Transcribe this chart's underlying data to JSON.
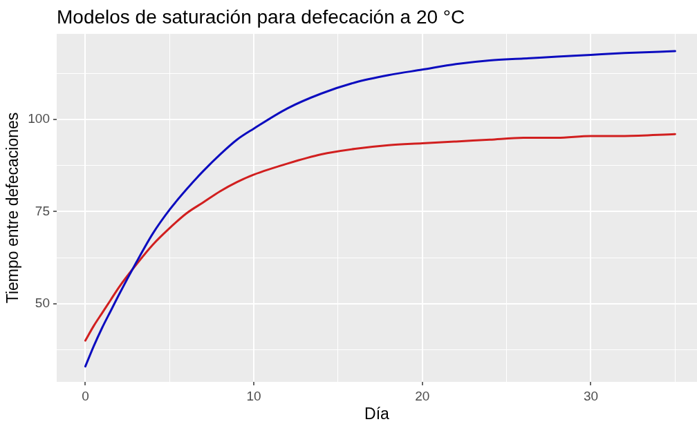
{
  "chart_data": {
    "type": "line",
    "title": "Modelos de saturación para defecación a 20 °C",
    "xlabel": "Día",
    "ylabel": "Tiempo entre defecaciones",
    "x": [
      0,
      0.5,
      1,
      1.5,
      2,
      3,
      4,
      5,
      6,
      7,
      8,
      9,
      10,
      12,
      14,
      16,
      18,
      20,
      22,
      24,
      26,
      28,
      30,
      32,
      35
    ],
    "series": [
      {
        "color": "#0c0cbf",
        "values": [
          33,
          38.5,
          43.5,
          48,
          52.5,
          61,
          69,
          75.5,
          81,
          86,
          90.5,
          94.5,
          97.5,
          103,
          107,
          110,
          112,
          113.5,
          115,
          116,
          116.5,
          117,
          117.5,
          118,
          118.5
        ]
      },
      {
        "color": "#d11f1f",
        "values": [
          40,
          44,
          47.5,
          51,
          54.5,
          60.5,
          66,
          70.5,
          74.5,
          77.5,
          80.5,
          83,
          85,
          88,
          90.5,
          92,
          93,
          93.5,
          94,
          94.5,
          95,
          95,
          95.5,
          95.5,
          96
        ]
      }
    ],
    "xlim": [
      -1.7,
      36.3
    ],
    "ylim": [
      28.8,
      123.2
    ],
    "xticks": [
      0,
      {
        "value": 5,
        "label": null
      },
      10,
      {
        "value": 15,
        "label": null
      },
      20,
      {
        "value": 25,
        "label": null
      },
      30,
      {
        "value": 35,
        "label": null
      }
    ],
    "yticks": [
      {
        "value": 37.5,
        "label": null
      },
      50,
      {
        "value": 62.5,
        "label": null
      },
      75,
      {
        "value": 87.5,
        "label": null
      },
      100,
      {
        "value": 112.5,
        "label": null
      }
    ],
    "grid": true,
    "line_style": "solid"
  }
}
